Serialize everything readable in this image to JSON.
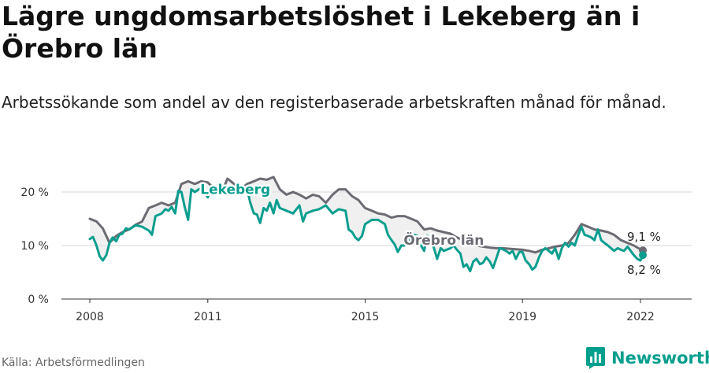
{
  "title": "Lägre ungdomsarbetslöshet i Lekeberg än i Örebro län",
  "subtitle": "Arbetssökande som andel av den registerbaserade arbetskraften månad för månad.",
  "source": "Källa: Arbetsförmedlingen",
  "brand": {
    "name": "Newsworthy",
    "icon": "newsworthy-logo-icon",
    "color": "#009e8c"
  },
  "chart_data": {
    "type": "line",
    "title": "",
    "xlabel": "",
    "ylabel": "",
    "xlim": [
      2008,
      2022.5
    ],
    "ylim": [
      0,
      20
    ],
    "yticks": [
      0,
      10,
      20
    ],
    "ytick_labels": [
      "0 %",
      "10 %",
      "20 %"
    ],
    "xticks": [
      2008,
      2011,
      2015,
      2019,
      2022
    ],
    "xtick_labels": [
      "2008",
      "2011",
      "2015",
      "2019",
      "2022"
    ],
    "grid": "horizontal",
    "legend": "none",
    "shading_between_series": "#e6e6e6",
    "series": [
      {
        "name": "Örebro län",
        "color": "#6b6b73",
        "end_label": "9,1 %",
        "points": [
          [
            2008.0,
            15.0
          ],
          [
            2008.17,
            14.5
          ],
          [
            2008.33,
            13.2
          ],
          [
            2008.5,
            10.5
          ],
          [
            2008.67,
            11.8
          ],
          [
            2008.83,
            12.5
          ],
          [
            2009.0,
            13.0
          ],
          [
            2009.17,
            13.9
          ],
          [
            2009.33,
            14.5
          ],
          [
            2009.5,
            17.0
          ],
          [
            2009.67,
            17.5
          ],
          [
            2009.83,
            18.0
          ],
          [
            2010.0,
            17.5
          ],
          [
            2010.17,
            18.0
          ],
          [
            2010.33,
            21.5
          ],
          [
            2010.5,
            22.0
          ],
          [
            2010.67,
            21.5
          ],
          [
            2010.83,
            22.0
          ],
          [
            2011.0,
            21.8
          ],
          [
            2011.17,
            20.5
          ],
          [
            2011.33,
            19.5
          ],
          [
            2011.5,
            22.5
          ],
          [
            2011.67,
            21.5
          ],
          [
            2011.83,
            20.5
          ],
          [
            2012.0,
            21.5
          ],
          [
            2012.17,
            22.0
          ],
          [
            2012.33,
            22.5
          ],
          [
            2012.5,
            22.3
          ],
          [
            2012.67,
            22.8
          ],
          [
            2012.83,
            20.5
          ],
          [
            2013.0,
            19.5
          ],
          [
            2013.17,
            20.0
          ],
          [
            2013.33,
            19.5
          ],
          [
            2013.5,
            18.8
          ],
          [
            2013.67,
            19.5
          ],
          [
            2013.83,
            19.2
          ],
          [
            2014.0,
            18.0
          ],
          [
            2014.17,
            19.5
          ],
          [
            2014.33,
            20.5
          ],
          [
            2014.5,
            20.5
          ],
          [
            2014.67,
            19.2
          ],
          [
            2014.83,
            18.5
          ],
          [
            2015.0,
            17.0
          ],
          [
            2015.17,
            16.5
          ],
          [
            2015.33,
            16.0
          ],
          [
            2015.5,
            15.8
          ],
          [
            2015.67,
            15.2
          ],
          [
            2015.83,
            15.5
          ],
          [
            2016.0,
            15.5
          ],
          [
            2016.17,
            15.0
          ],
          [
            2016.33,
            14.5
          ],
          [
            2016.5,
            13.0
          ],
          [
            2016.67,
            13.2
          ],
          [
            2016.83,
            12.8
          ],
          [
            2017.0,
            12.5
          ],
          [
            2017.17,
            12.2
          ],
          [
            2017.33,
            11.5
          ],
          [
            2017.5,
            11.0
          ],
          [
            2017.67,
            10.5
          ],
          [
            2017.83,
            10.0
          ],
          [
            2018.0,
            9.8
          ],
          [
            2018.17,
            9.6
          ],
          [
            2018.33,
            9.5
          ],
          [
            2018.5,
            9.5
          ],
          [
            2018.67,
            9.4
          ],
          [
            2018.83,
            9.3
          ],
          [
            2019.0,
            9.2
          ],
          [
            2019.17,
            9.0
          ],
          [
            2019.33,
            8.7
          ],
          [
            2019.5,
            9.2
          ],
          [
            2019.67,
            9.5
          ],
          [
            2019.83,
            9.8
          ],
          [
            2020.0,
            10.0
          ],
          [
            2020.17,
            10.5
          ],
          [
            2020.33,
            12.0
          ],
          [
            2020.5,
            14.0
          ],
          [
            2020.67,
            13.5
          ],
          [
            2020.83,
            13.0
          ],
          [
            2021.0,
            12.8
          ],
          [
            2021.17,
            12.5
          ],
          [
            2021.33,
            12.0
          ],
          [
            2021.5,
            11.0
          ],
          [
            2021.67,
            10.5
          ],
          [
            2021.83,
            10.0
          ],
          [
            2022.0,
            9.3
          ],
          [
            2022.06,
            9.1
          ]
        ]
      },
      {
        "name": "Lekeberg",
        "color": "#0a9e8f",
        "end_label": "8,2 %",
        "points": [
          [
            2008.0,
            11.2
          ],
          [
            2008.08,
            11.6
          ],
          [
            2008.17,
            10.0
          ],
          [
            2008.25,
            8.0
          ],
          [
            2008.33,
            7.2
          ],
          [
            2008.42,
            8.2
          ],
          [
            2008.5,
            10.5
          ],
          [
            2008.58,
            11.5
          ],
          [
            2008.67,
            10.8
          ],
          [
            2008.75,
            12.0
          ],
          [
            2008.83,
            12.2
          ],
          [
            2008.92,
            13.2
          ],
          [
            2009.0,
            13.0
          ],
          [
            2009.17,
            13.8
          ],
          [
            2009.33,
            13.5
          ],
          [
            2009.5,
            12.8
          ],
          [
            2009.58,
            12.0
          ],
          [
            2009.67,
            15.5
          ],
          [
            2009.83,
            16.0
          ],
          [
            2009.92,
            16.8
          ],
          [
            2010.0,
            16.5
          ],
          [
            2010.08,
            17.2
          ],
          [
            2010.17,
            16.0
          ],
          [
            2010.25,
            20.2
          ],
          [
            2010.33,
            20.0
          ],
          [
            2010.42,
            17.0
          ],
          [
            2010.5,
            14.8
          ],
          [
            2010.58,
            20.5
          ],
          [
            2010.67,
            20.0
          ],
          [
            2010.83,
            20.8
          ],
          [
            2011.0,
            19.0
          ],
          [
            2011.08,
            20.8
          ],
          [
            2011.17,
            20.5
          ],
          [
            2011.33,
            19.5
          ],
          [
            2011.5,
            20.5
          ],
          [
            2011.67,
            20.2
          ],
          [
            2011.83,
            20.5
          ],
          [
            2012.0,
            20.5
          ],
          [
            2012.08,
            18.0
          ],
          [
            2012.17,
            16.0
          ],
          [
            2012.25,
            15.8
          ],
          [
            2012.33,
            14.2
          ],
          [
            2012.42,
            17.0
          ],
          [
            2012.5,
            16.5
          ],
          [
            2012.58,
            18.0
          ],
          [
            2012.67,
            16.0
          ],
          [
            2012.75,
            18.5
          ],
          [
            2012.83,
            17.0
          ],
          [
            2013.0,
            16.5
          ],
          [
            2013.17,
            16.0
          ],
          [
            2013.33,
            17.5
          ],
          [
            2013.42,
            14.5
          ],
          [
            2013.5,
            16.0
          ],
          [
            2013.67,
            16.5
          ],
          [
            2013.83,
            16.8
          ],
          [
            2014.0,
            17.5
          ],
          [
            2014.17,
            16.0
          ],
          [
            2014.33,
            16.8
          ],
          [
            2014.5,
            16.5
          ],
          [
            2014.58,
            13.0
          ],
          [
            2014.67,
            12.5
          ],
          [
            2014.75,
            11.5
          ],
          [
            2014.83,
            11.0
          ],
          [
            2014.92,
            11.8
          ],
          [
            2015.0,
            14.0
          ],
          [
            2015.17,
            14.8
          ],
          [
            2015.33,
            14.8
          ],
          [
            2015.5,
            14.0
          ],
          [
            2015.58,
            12.0
          ],
          [
            2015.67,
            11.0
          ],
          [
            2015.75,
            10.2
          ],
          [
            2015.83,
            8.8
          ],
          [
            2015.92,
            10.0
          ],
          [
            2016.0,
            10.0
          ],
          [
            2016.17,
            11.5
          ],
          [
            2016.25,
            12.0
          ],
          [
            2016.33,
            11.8
          ],
          [
            2016.42,
            10.0
          ],
          [
            2016.5,
            9.0
          ],
          [
            2016.58,
            11.8
          ],
          [
            2016.67,
            11.2
          ],
          [
            2016.75,
            9.5
          ],
          [
            2016.83,
            7.5
          ],
          [
            2016.92,
            9.5
          ],
          [
            2017.0,
            9.0
          ],
          [
            2017.17,
            9.5
          ],
          [
            2017.25,
            10.0
          ],
          [
            2017.33,
            9.2
          ],
          [
            2017.42,
            8.5
          ],
          [
            2017.5,
            6.0
          ],
          [
            2017.58,
            6.5
          ],
          [
            2017.67,
            5.2
          ],
          [
            2017.75,
            7.0
          ],
          [
            2017.83,
            7.5
          ],
          [
            2017.92,
            6.5
          ],
          [
            2018.0,
            6.8
          ],
          [
            2018.08,
            7.8
          ],
          [
            2018.17,
            7.0
          ],
          [
            2018.25,
            5.8
          ],
          [
            2018.33,
            7.5
          ],
          [
            2018.42,
            9.5
          ],
          [
            2018.5,
            9.3
          ],
          [
            2018.58,
            9.0
          ],
          [
            2018.67,
            8.5
          ],
          [
            2018.75,
            9.0
          ],
          [
            2018.83,
            7.5
          ],
          [
            2018.92,
            8.8
          ],
          [
            2019.0,
            8.8
          ],
          [
            2019.08,
            7.2
          ],
          [
            2019.17,
            6.5
          ],
          [
            2019.25,
            5.5
          ],
          [
            2019.33,
            6.0
          ],
          [
            2019.42,
            7.8
          ],
          [
            2019.5,
            9.0
          ],
          [
            2019.58,
            9.5
          ],
          [
            2019.67,
            9.0
          ],
          [
            2019.75,
            8.5
          ],
          [
            2019.83,
            9.5
          ],
          [
            2019.92,
            7.5
          ],
          [
            2020.0,
            9.5
          ],
          [
            2020.08,
            10.5
          ],
          [
            2020.17,
            9.8
          ],
          [
            2020.25,
            10.5
          ],
          [
            2020.33,
            10.0
          ],
          [
            2020.42,
            12.0
          ],
          [
            2020.5,
            13.5
          ],
          [
            2020.58,
            12.0
          ],
          [
            2020.67,
            11.8
          ],
          [
            2020.75,
            11.5
          ],
          [
            2020.83,
            11.0
          ],
          [
            2020.92,
            13.0
          ],
          [
            2021.0,
            11.0
          ],
          [
            2021.08,
            10.5
          ],
          [
            2021.17,
            10.0
          ],
          [
            2021.25,
            9.5
          ],
          [
            2021.33,
            9.0
          ],
          [
            2021.42,
            9.5
          ],
          [
            2021.5,
            9.2
          ],
          [
            2021.58,
            9.0
          ],
          [
            2021.67,
            9.8
          ],
          [
            2021.75,
            9.0
          ],
          [
            2021.83,
            8.2
          ],
          [
            2021.92,
            7.5
          ],
          [
            2022.0,
            7.2
          ],
          [
            2022.06,
            8.2
          ]
        ]
      }
    ],
    "annotations": [
      {
        "text": "Lekeberg",
        "series": "Lekeberg",
        "x": 2011.7,
        "y": 20.5
      },
      {
        "text": "Örebro län",
        "series": "Örebro län",
        "x": 2017.0,
        "y": 11.0
      }
    ]
  }
}
